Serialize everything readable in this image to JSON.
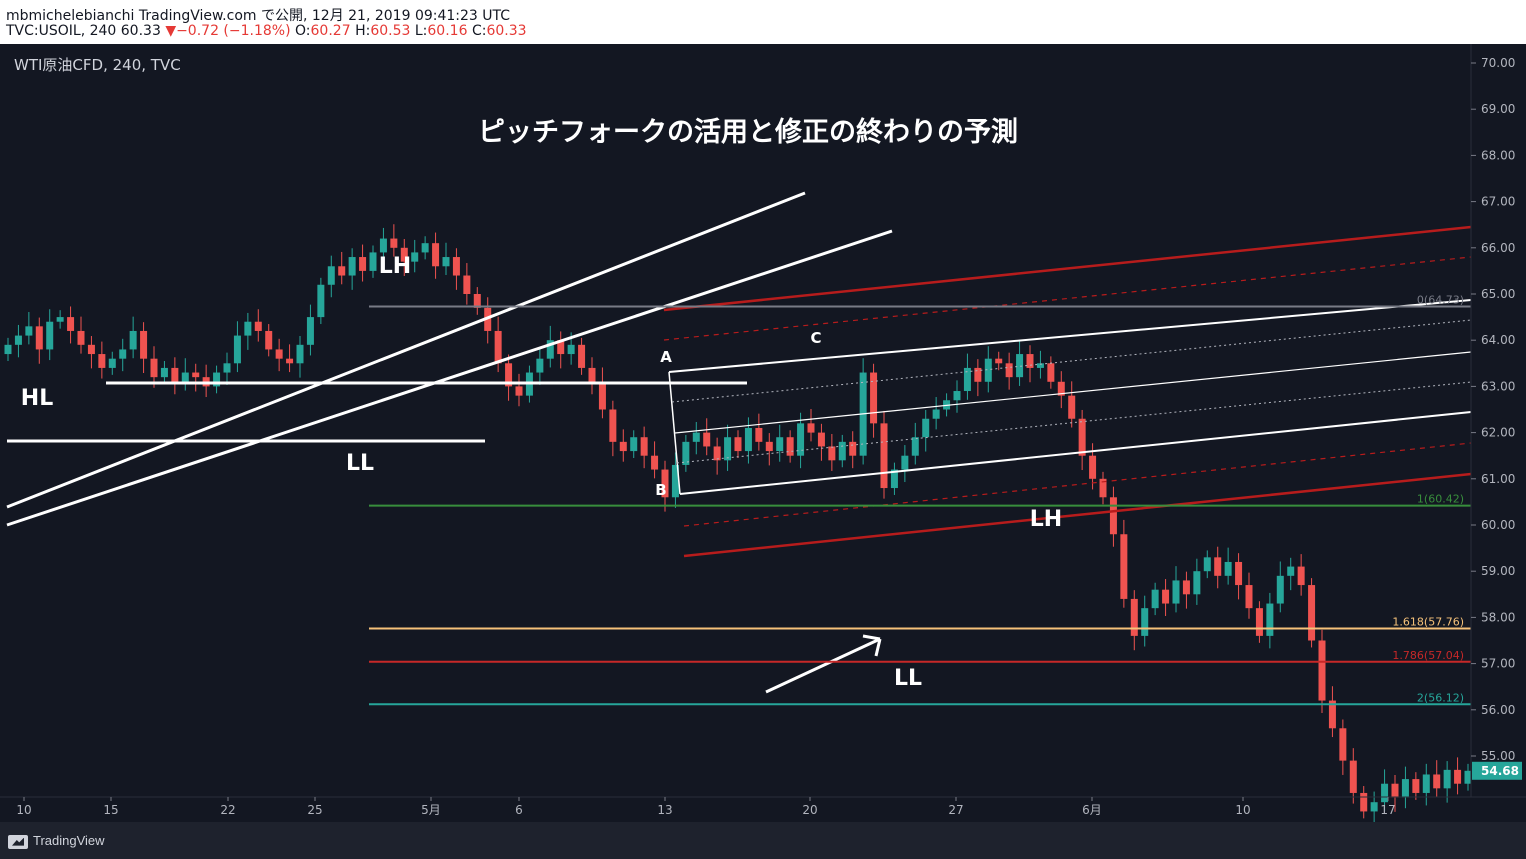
{
  "header": {
    "line1": "mbmichelebianchi TradingView.com で公開, 12月 21, 2019 09:41:23 UTC",
    "line2_symbol": "TVC:USOIL, 240 60.33",
    "line2_change": "▼−0.72 (−1.18%)",
    "line2_o_label": " O:",
    "line2_o": "60.27",
    "line2_h_label": " H:",
    "line2_h": "60.53",
    "line2_l_label": " L:",
    "line2_l": "60.16",
    "line2_c_label": " C:",
    "line2_c": "60.33"
  },
  "chart_label": "WTI原油CFD, 240, TVC",
  "footer": {
    "brand": "TradingView"
  },
  "colors": {
    "bg": "#131722",
    "up": "#26a69a",
    "down": "#ef5350",
    "white": "#ffffff",
    "red_line": "#b71c1c",
    "green_level": "#388e3c",
    "orange_level": "#f6c27a",
    "red_level": "#c62828",
    "teal_level": "#26a69a",
    "gray_level": "#787b86"
  },
  "chart_data": {
    "type": "candlestick",
    "title": "ピッチフォークの活用と修正の終わりの予測",
    "ylim": [
      54.2,
      70.4
    ],
    "y_ticks": [
      "70.00",
      "69.00",
      "68.00",
      "67.00",
      "66.00",
      "65.00",
      "64.00",
      "63.00",
      "62.00",
      "61.00",
      "60.00",
      "59.00",
      "58.00",
      "57.00",
      "56.00",
      "55.00"
    ],
    "x_ticks": [
      "10",
      "15",
      "22",
      "25",
      "5月",
      "6",
      "13",
      "20",
      "27",
      "6月",
      "10",
      "17"
    ],
    "last_price": "54.68",
    "fib_levels": [
      {
        "label": "0(64.73)",
        "value": 64.73,
        "color": "#787b86"
      },
      {
        "label": "1(60.42)",
        "value": 60.42,
        "color": "#388e3c"
      },
      {
        "label": "1.618(57.76)",
        "value": 57.76,
        "color": "#f6c27a"
      },
      {
        "label": "1.786(57.04)",
        "value": 57.04,
        "color": "#c62828"
      },
      {
        "label": "2(56.12)",
        "value": 56.12,
        "color": "#26a69a"
      }
    ],
    "annotations": [
      {
        "text": "LH"
      },
      {
        "text": "HL"
      },
      {
        "text": "LL"
      },
      {
        "text": "A"
      },
      {
        "text": "B"
      },
      {
        "text": "C"
      },
      {
        "text": "LH"
      },
      {
        "text": "LL"
      }
    ],
    "series_close": [
      63.9,
      64.1,
      64.3,
      63.8,
      64.4,
      64.5,
      64.2,
      63.9,
      63.7,
      63.4,
      63.6,
      63.8,
      64.2,
      63.6,
      63.2,
      63.4,
      63.1,
      63.3,
      63.2,
      63.0,
      63.3,
      63.5,
      64.1,
      64.4,
      64.2,
      63.8,
      63.6,
      63.5,
      63.9,
      64.5,
      65.2,
      65.6,
      65.4,
      65.8,
      65.5,
      65.9,
      66.2,
      66.0,
      65.7,
      65.9,
      66.1,
      65.6,
      65.8,
      65.4,
      65.0,
      64.7,
      64.2,
      63.5,
      63.0,
      62.8,
      63.3,
      63.6,
      64.0,
      63.7,
      63.9,
      63.4,
      63.1,
      62.5,
      61.8,
      61.6,
      61.9,
      61.5,
      61.2,
      60.6,
      61.3,
      61.8,
      62.0,
      61.7,
      61.4,
      61.9,
      61.6,
      62.1,
      61.8,
      61.6,
      61.9,
      61.5,
      62.2,
      62.0,
      61.7,
      61.4,
      61.8,
      61.5,
      63.3,
      62.2,
      60.8,
      61.2,
      61.5,
      61.9,
      62.3,
      62.5,
      62.7,
      62.9,
      63.4,
      63.1,
      63.6,
      63.5,
      63.2,
      63.7,
      63.4,
      63.5,
      63.1,
      62.8,
      62.3,
      61.5,
      61.0,
      60.6,
      59.8,
      58.4,
      57.6,
      58.2,
      58.6,
      58.3,
      58.8,
      58.5,
      59.0,
      59.3,
      58.9,
      59.2,
      58.7,
      58.2,
      57.6,
      58.3,
      58.9,
      59.1,
      58.7,
      57.5,
      56.2,
      55.6,
      54.9,
      54.2,
      53.8,
      54.0,
      54.4,
      54.1,
      54.5,
      54.2,
      54.6,
      54.3,
      54.7,
      54.4,
      54.68
    ]
  }
}
